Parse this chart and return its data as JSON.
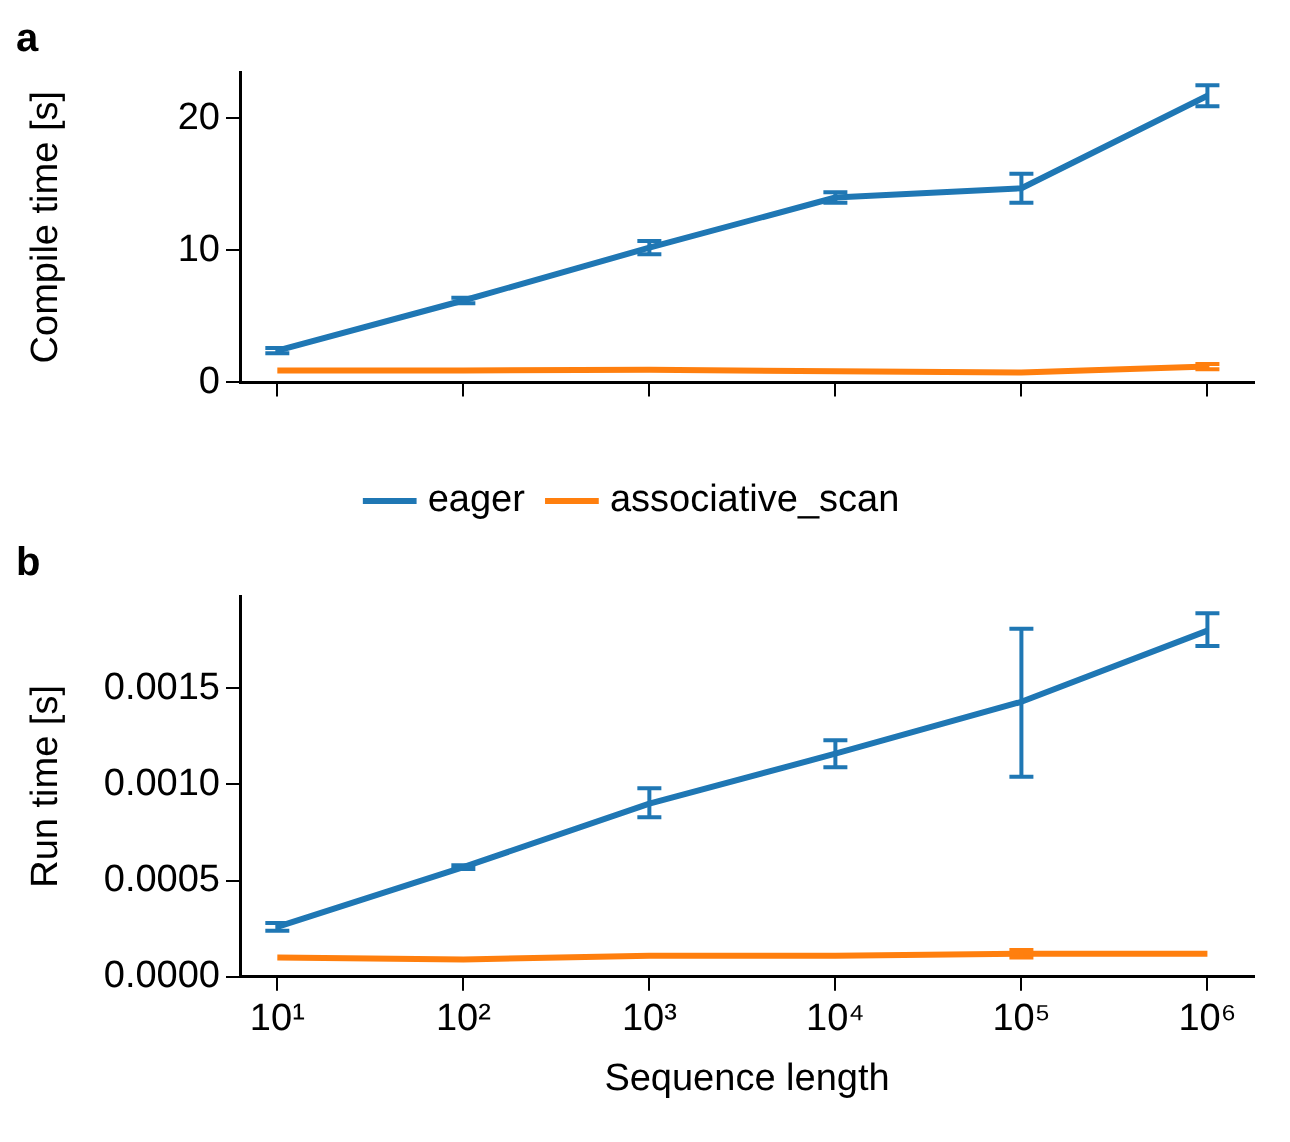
{
  "chart_data": [
    {
      "type": "line",
      "title": "a",
      "ylabel": "Compile time [s]",
      "log": "x",
      "xlim": [
        6.3,
        1780000
      ],
      "ylim": [
        0,
        23.5
      ],
      "xticks": [
        {
          "value": 10,
          "label": null
        },
        {
          "value": 100,
          "label": null
        },
        {
          "value": 1000,
          "label": null
        },
        {
          "value": 10000,
          "label": null
        },
        {
          "value": 100000,
          "label": null
        },
        {
          "value": 1000000,
          "label": null
        }
      ],
      "yticks": [
        0,
        10,
        20
      ],
      "tick_labels": "y",
      "grid": false,
      "legend": "bottom",
      "line_style": "solid",
      "series": [
        {
          "name": "eager",
          "color": "#1f77b4",
          "x": [
            10,
            100,
            1000,
            10000,
            100000,
            1000000
          ],
          "values": [
            2.4,
            6.2,
            10.2,
            14.0,
            14.7,
            21.7
          ],
          "errors": [
            0.2,
            0.2,
            0.5,
            0.4,
            1.1,
            0.8
          ]
        },
        {
          "name": "associative_scan",
          "color": "#ff7f0e",
          "x": [
            10,
            100,
            1000,
            10000,
            100000,
            1000000
          ],
          "values": [
            0.9,
            0.9,
            0.95,
            0.85,
            0.75,
            1.2
          ],
          "errors": [
            null,
            null,
            null,
            null,
            null,
            0.2
          ]
        }
      ]
    },
    {
      "type": "line",
      "title": "b",
      "xlabel": "Sequence length",
      "ylabel": "Run time [s]",
      "log": "x",
      "xlim": [
        6.3,
        1780000
      ],
      "ylim": [
        0,
        0.00198
      ],
      "xticks": [
        {
          "value": 10,
          "label": "10¹"
        },
        {
          "value": 100,
          "label": "10²"
        },
        {
          "value": 1000,
          "label": "10³"
        },
        {
          "value": 10000,
          "label": "10⁴"
        },
        {
          "value": 100000,
          "label": "10⁵"
        },
        {
          "value": 1000000,
          "label": "10⁶"
        }
      ],
      "yticks": [
        {
          "value": 0,
          "label": "0.0000"
        },
        {
          "value": 0.0005,
          "label": "0.0005"
        },
        {
          "value": 0.001,
          "label": "0.0010"
        },
        {
          "value": 0.0015,
          "label": "0.0015"
        }
      ],
      "grid": false,
      "line_style": "solid",
      "series": [
        {
          "color": "#1f77b4",
          "x": [
            10,
            100,
            1000,
            10000,
            100000,
            1000000
          ],
          "values": [
            0.00026,
            0.00057,
            0.0009,
            0.00116,
            0.00143,
            0.0018
          ],
          "errors": [
            2e-05,
            1e-05,
            [
              0.00083,
              0.00098
            ],
            7e-05,
            [
              0.00104,
              0.00181
            ],
            [
              0.00172,
              0.00189
            ]
          ]
        },
        {
          "color": "#ff7f0e",
          "x": [
            10,
            100,
            1000,
            10000,
            100000,
            1000000
          ],
          "values": [
            0.0001,
            9e-05,
            0.00011,
            0.00011,
            0.00012,
            0.00012
          ],
          "errors": [
            null,
            null,
            null,
            null,
            2e-05,
            null
          ]
        }
      ]
    }
  ]
}
